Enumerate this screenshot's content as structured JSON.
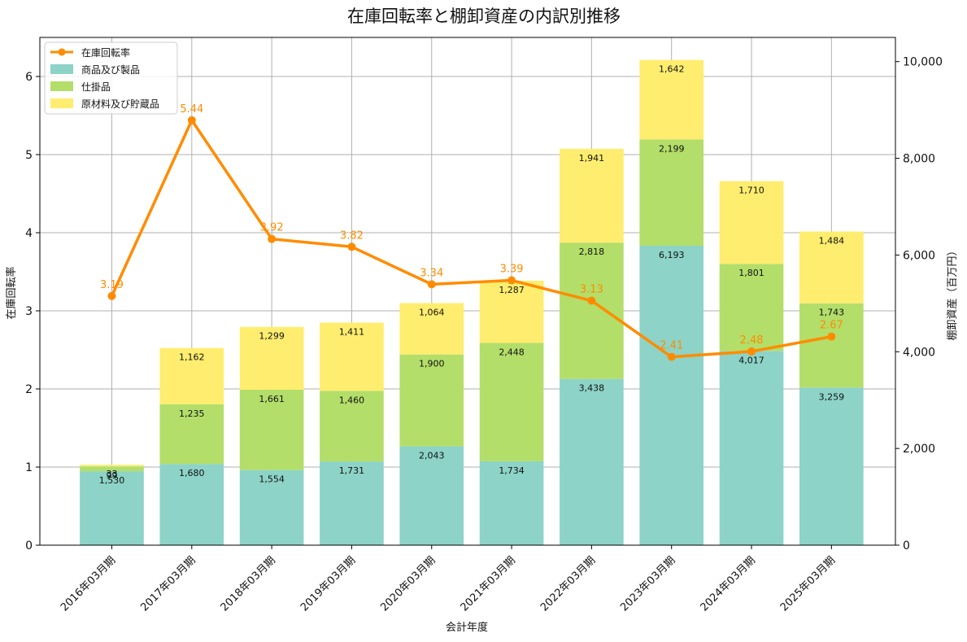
{
  "chart_data": {
    "type": "bar",
    "stacked": true,
    "title": "在庫回転率と棚卸資産の内訳別推移",
    "xlabel": "会計年度",
    "ylabel_left": "在庫回転率",
    "ylabel_right": "棚卸資産（百万円）",
    "categories": [
      "2016年03月期",
      "2017年03月期",
      "2018年03月期",
      "2019年03月期",
      "2020年03月期",
      "2021年03月期",
      "2022年03月期",
      "2023年03月期",
      "2024年03月期",
      "2025年03月期"
    ],
    "series": [
      {
        "name": "商品及び製品",
        "color": "#8dd3c7",
        "values": [
          1530,
          1680,
          1554,
          1731,
          2043,
          1734,
          3438,
          6193,
          4017,
          3259
        ],
        "labels": [
          "1,530",
          "1,680",
          "1,554",
          "1,731",
          "2,043",
          "1,734",
          "3,438",
          "6,193",
          "4,017",
          "3,259"
        ]
      },
      {
        "name": "仕掛品",
        "color": "#b3de69",
        "values": [
          99,
          1235,
          1661,
          1460,
          1900,
          2448,
          2818,
          2199,
          1801,
          1743
        ],
        "labels": [
          "99",
          "1,235",
          "1,661",
          "1,460",
          "1,900",
          "2,448",
          "2,818",
          "2,199",
          "1,801",
          "1,743"
        ]
      },
      {
        "name": "原材料及び貯蔵品",
        "color": "#ffed6f",
        "values": [
          33,
          1162,
          1299,
          1411,
          1064,
          1287,
          1941,
          1642,
          1710,
          1484
        ],
        "labels": [
          "33",
          "1,162",
          "1,299",
          "1,411",
          "1,064",
          "1,287",
          "1,941",
          "1,642",
          "1,710",
          "1,484"
        ]
      }
    ],
    "line": {
      "name": "在庫回転率",
      "color": "#ff8c00",
      "values": [
        3.19,
        5.44,
        3.92,
        3.82,
        3.34,
        3.39,
        3.13,
        2.41,
        2.48,
        2.67
      ],
      "labels": [
        "3.19",
        "5.44",
        "3.92",
        "3.82",
        "3.34",
        "3.39",
        "3.13",
        "2.41",
        "2.48",
        "2.67"
      ]
    },
    "ylim_left": [
      0,
      6.5
    ],
    "ylim_right": [
      0,
      10500
    ],
    "yticks_left": [
      "0",
      "1",
      "2",
      "3",
      "4",
      "5",
      "6"
    ],
    "yticks_right": [
      "0",
      "2,000",
      "4,000",
      "6,000",
      "8,000",
      "10,000"
    ],
    "yticks_right_values": [
      0,
      2000,
      4000,
      6000,
      8000,
      10000
    ],
    "grid": true,
    "legend": "top-left"
  }
}
